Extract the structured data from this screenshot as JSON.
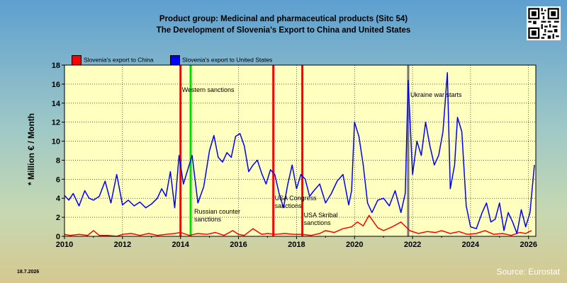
{
  "header": {
    "title": "Product group: Medicinal and pharmaceutical products (Sitc 54)",
    "subtitle": "The Development of Slovenia's Export to  China and United States"
  },
  "footer": {
    "source": "Source: Eurostat",
    "date": "18.7.2026"
  },
  "colors": {
    "china": "#ff0000",
    "usa": "#0000ff",
    "grid": "#000000",
    "western_sanctions_line": "#00dd00",
    "red_event_line": "#ff0000",
    "war_line": "#777777",
    "plot_background": "#ffffc0"
  },
  "chart_data": {
    "type": "line",
    "ylabel": "* Million € / Month",
    "ylim": [
      0,
      18
    ],
    "yticks": [
      0,
      2,
      4,
      6,
      8,
      10,
      12,
      14,
      16,
      18
    ],
    "xlim": [
      2010.0,
      2026.25
    ],
    "xticks": [
      2010,
      2012,
      2014,
      2016,
      2018,
      2020,
      2022,
      2024,
      2026
    ],
    "grid": true,
    "legend_position": "top-left",
    "series": [
      {
        "name": "Slovenia's export to China",
        "color": "#ff0000",
        "x": [
          2010.0,
          2010.2,
          2010.5,
          2010.8,
          2011.0,
          2011.2,
          2011.5,
          2011.8,
          2012.0,
          2012.3,
          2012.6,
          2012.9,
          2013.2,
          2013.5,
          2013.8,
          2014.0,
          2014.3,
          2014.6,
          2014.9,
          2015.2,
          2015.5,
          2015.8,
          2016.0,
          2016.2,
          2016.5,
          2016.8,
          2017.0,
          2017.3,
          2017.6,
          2017.9,
          2018.2,
          2018.5,
          2018.8,
          2019.0,
          2019.3,
          2019.6,
          2019.9,
          2020.1,
          2020.3,
          2020.5,
          2020.8,
          2021.0,
          2021.3,
          2021.6,
          2021.9,
          2022.2,
          2022.5,
          2022.8,
          2023.0,
          2023.3,
          2023.6,
          2023.9,
          2024.2,
          2024.5,
          2024.8,
          2025.1,
          2025.4,
          2025.7,
          2025.9,
          2026.1
        ],
        "values": [
          0.2,
          0.1,
          0.2,
          0.1,
          0.6,
          0.1,
          0.1,
          0.0,
          0.2,
          0.3,
          0.1,
          0.3,
          0.1,
          0.2,
          0.3,
          0.4,
          0.1,
          0.3,
          0.2,
          0.4,
          0.1,
          0.6,
          0.2,
          0.1,
          0.8,
          0.2,
          0.3,
          0.2,
          0.3,
          0.2,
          0.2,
          0.1,
          0.3,
          0.6,
          0.4,
          0.8,
          1.0,
          1.5,
          1.1,
          2.2,
          0.9,
          0.6,
          1.0,
          1.5,
          0.6,
          0.3,
          0.5,
          0.4,
          0.6,
          0.3,
          0.5,
          0.2,
          0.3,
          0.6,
          0.2,
          0.3,
          0.1,
          0.4,
          0.3,
          0.6
        ]
      },
      {
        "name": "Slovenia's export to United States",
        "color": "#0000ff",
        "x": [
          2010.0,
          2010.15,
          2010.3,
          2010.5,
          2010.7,
          2010.85,
          2011.0,
          2011.2,
          2011.4,
          2011.6,
          2011.8,
          2012.0,
          2012.2,
          2012.4,
          2012.6,
          2012.8,
          2013.0,
          2013.2,
          2013.35,
          2013.5,
          2013.65,
          2013.8,
          2013.95,
          2014.1,
          2014.25,
          2014.4,
          2014.6,
          2014.8,
          2015.0,
          2015.15,
          2015.3,
          2015.45,
          2015.6,
          2015.75,
          2015.9,
          2016.05,
          2016.2,
          2016.35,
          2016.5,
          2016.65,
          2016.8,
          2016.95,
          2017.1,
          2017.25,
          2017.4,
          2017.55,
          2017.7,
          2017.85,
          2018.0,
          2018.15,
          2018.3,
          2018.45,
          2018.6,
          2018.8,
          2019.0,
          2019.2,
          2019.4,
          2019.6,
          2019.8,
          2019.9,
          2020.0,
          2020.15,
          2020.3,
          2020.45,
          2020.6,
          2020.8,
          2021.0,
          2021.2,
          2021.4,
          2021.6,
          2021.75,
          2021.85,
          2022.0,
          2022.15,
          2022.3,
          2022.45,
          2022.6,
          2022.75,
          2022.9,
          2023.05,
          2023.2,
          2023.3,
          2023.45,
          2023.55,
          2023.7,
          2023.85,
          2024.0,
          2024.2,
          2024.4,
          2024.55,
          2024.7,
          2024.85,
          2025.0,
          2025.15,
          2025.3,
          2025.45,
          2025.6,
          2025.75,
          2025.9,
          2026.05,
          2026.2
        ],
        "values": [
          4.3,
          3.8,
          4.5,
          3.2,
          4.8,
          4.0,
          3.8,
          4.2,
          5.8,
          3.5,
          6.5,
          3.3,
          3.8,
          3.2,
          3.6,
          3.0,
          3.4,
          4.0,
          5.0,
          4.2,
          6.8,
          3.0,
          8.5,
          5.5,
          7.0,
          8.5,
          3.5,
          5.2,
          9.0,
          10.6,
          8.3,
          7.8,
          8.8,
          8.3,
          10.5,
          10.8,
          9.5,
          6.8,
          7.5,
          8.0,
          6.6,
          5.5,
          7.0,
          6.5,
          4.5,
          3.0,
          5.5,
          7.5,
          5.0,
          6.5,
          6.0,
          4.2,
          4.8,
          5.5,
          3.5,
          4.5,
          5.8,
          6.5,
          3.3,
          4.8,
          12.0,
          10.5,
          7.5,
          3.5,
          2.5,
          3.8,
          4.0,
          3.2,
          4.8,
          2.5,
          4.5,
          16.4,
          6.5,
          10.0,
          8.5,
          12.0,
          9.5,
          7.5,
          8.5,
          11.0,
          17.2,
          5.0,
          7.5,
          12.5,
          11.0,
          3.2,
          1.0,
          0.8,
          2.5,
          3.5,
          1.5,
          1.8,
          3.5,
          0.6,
          2.5,
          1.5,
          0.3,
          2.8,
          1.0,
          2.5,
          7.5
        ]
      }
    ],
    "annotations": [
      {
        "label": "Western sanctions",
        "x": 2014.0,
        "color": "red"
      },
      {
        "label": "",
        "x": 2014.35,
        "color": "green"
      },
      {
        "label": "Russian counter sanctions",
        "x": 2014.35,
        "color": "none"
      },
      {
        "label": "USA Congress sanctions",
        "x": 2017.2,
        "color": "red"
      },
      {
        "label": "USA Skribal sanctions",
        "x": 2018.2,
        "color": "red"
      },
      {
        "label": "Ukraine war starts",
        "x": 2021.85,
        "color": "gray"
      }
    ]
  }
}
